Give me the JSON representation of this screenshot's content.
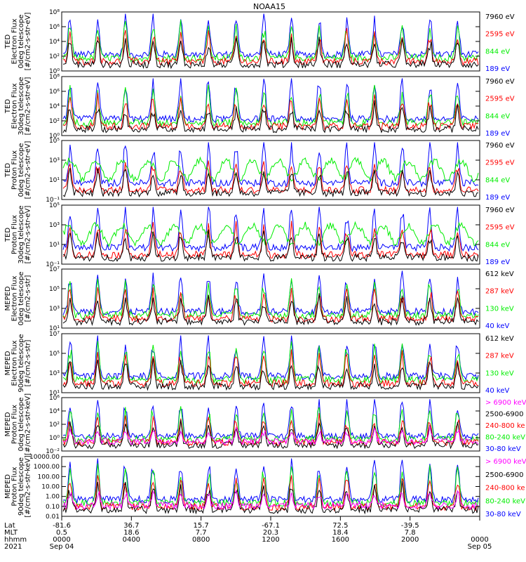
{
  "title": "NOAA15",
  "colors": {
    "black": "#000000",
    "red": "#ff0000",
    "green": "#00ee00",
    "blue": "#0000ff",
    "magenta": "#ff00ff"
  },
  "panels": [
    {
      "ylabel": [
        "TED",
        "Electron Flux",
        "0deg telescope",
        "[#/cm2-s-str-eV]"
      ],
      "ticks": [
        "10⁰",
        "10²",
        "10⁴",
        "10⁶",
        "10⁸"
      ],
      "legend": [
        {
          "text": "7960 eV",
          "color": "black"
        },
        {
          "text": "2595 eV",
          "color": "red"
        },
        {
          "text": "844 eV",
          "color": "green"
        },
        {
          "text": "189 eV",
          "color": "blue"
        }
      ]
    },
    {
      "ylabel": [
        "TED",
        "Electron Flux",
        "30deg telescope",
        "[#/cm2-s-str-eV]"
      ],
      "ticks": [
        "10⁰",
        "10²",
        "10⁴",
        "10⁶",
        "10⁸"
      ],
      "legend": [
        {
          "text": "7960 eV",
          "color": "black"
        },
        {
          "text": "2595 eV",
          "color": "red"
        },
        {
          "text": "844 eV",
          "color": "green"
        },
        {
          "text": "189 eV",
          "color": "blue"
        }
      ]
    },
    {
      "ylabel": [
        "TED",
        "Proton Flux",
        "0deg telescope",
        "[#/cm2-s-str-eV]"
      ],
      "ticks": [
        "10⁻¹",
        "10¹",
        "10³",
        "10⁵"
      ],
      "legend": [
        {
          "text": "7960 eV",
          "color": "black"
        },
        {
          "text": "2595 eV",
          "color": "red"
        },
        {
          "text": "844 eV",
          "color": "green"
        },
        {
          "text": "189 eV",
          "color": "blue"
        }
      ]
    },
    {
      "ylabel": [
        "TED",
        "Proton Flux",
        "30deg telescope",
        "[#/cm2-s-str-eV]"
      ],
      "ticks": [
        "10⁻¹",
        "10¹",
        "10³",
        "10⁵"
      ],
      "legend": [
        {
          "text": "7960 eV",
          "color": "black"
        },
        {
          "text": "2595 eV",
          "color": "red"
        },
        {
          "text": "844 eV",
          "color": "green"
        },
        {
          "text": "189 eV",
          "color": "blue"
        }
      ]
    },
    {
      "ylabel": [
        "MEPED",
        "Electron Flux",
        "0deg telescope",
        "[#/cm2-s-str]"
      ],
      "ticks": [
        "10¹",
        "10³",
        "10⁵",
        "10⁷"
      ],
      "legend": [
        {
          "text": "612 keV",
          "color": "black"
        },
        {
          "text": "287 keV",
          "color": "red"
        },
        {
          "text": "130 keV",
          "color": "green"
        },
        {
          "text": "40 keV",
          "color": "blue"
        }
      ]
    },
    {
      "ylabel": [
        "MEPED",
        "Electron Flux",
        "90deg telescope",
        "[#/cm2-s-str]"
      ],
      "ticks": [
        "10¹",
        "10³",
        "10⁵",
        "10⁷"
      ],
      "legend": [
        {
          "text": "612 keV",
          "color": "black"
        },
        {
          "text": "287 keV",
          "color": "red"
        },
        {
          "text": "130 keV",
          "color": "green"
        },
        {
          "text": "40 keV",
          "color": "blue"
        }
      ]
    },
    {
      "ylabel": [
        "MEPED",
        "Proton Flux",
        "0deg telescope",
        "[#/cm2-s-str-keV]"
      ],
      "ticks": [
        "10⁻²",
        "10⁰",
        "10²",
        "10⁴",
        "10⁶"
      ],
      "legend": [
        {
          "text": "> 6900 keV",
          "color": "magenta"
        },
        {
          "text": "2500-6900",
          "color": "black"
        },
        {
          "text": "240-800 ke",
          "color": "red"
        },
        {
          "text": "80-240 keV",
          "color": "green"
        },
        {
          "text": "30-80 keV",
          "color": "blue"
        }
      ]
    },
    {
      "ylabel": [
        "MEPED",
        "Proton Flux",
        "90deg telescope",
        "[#/cm2-s-str-keV]"
      ],
      "ticks": [
        "0.01",
        "0.10",
        "1.00",
        "10.00",
        "100.00",
        "1000.00",
        "10000.00"
      ],
      "legend": [
        {
          "text": "> 6900 keV",
          "color": "magenta"
        },
        {
          "text": "2500-6900",
          "color": "black"
        },
        {
          "text": "240-800 ke",
          "color": "red"
        },
        {
          "text": "80-240 keV",
          "color": "green"
        },
        {
          "text": "30-80 keV",
          "color": "blue"
        }
      ]
    }
  ],
  "xaxis": {
    "row_labels": [
      "Lat",
      "MLT",
      "hhmm",
      "2021"
    ],
    "columns": [
      {
        "lat": "-81.6",
        "mlt": "0.5",
        "hhmm": "0000",
        "date": "Sep 04"
      },
      {
        "lat": "36.7",
        "mlt": "18.6",
        "hhmm": "0400",
        "date": ""
      },
      {
        "lat": "15.7",
        "mlt": "7.7",
        "hhmm": "0800",
        "date": ""
      },
      {
        "lat": "-67.1",
        "mlt": "20.3",
        "hhmm": "1200",
        "date": ""
      },
      {
        "lat": "72.5",
        "mlt": "18.4",
        "hhmm": "1600",
        "date": ""
      },
      {
        "lat": "-39.5",
        "mlt": "7.8",
        "hhmm": "2000",
        "date": ""
      },
      {
        "lat": "",
        "mlt": "",
        "hhmm": "0000",
        "date": "Sep 05"
      }
    ]
  },
  "chart_data": {
    "type": "line",
    "title": "NOAA15",
    "x_unit": "hhmm",
    "x_range": [
      "2021 Sep 04 0000",
      "2021 Sep 05 0000"
    ],
    "panel_count": 8,
    "scale": "log",
    "grid": false
  }
}
